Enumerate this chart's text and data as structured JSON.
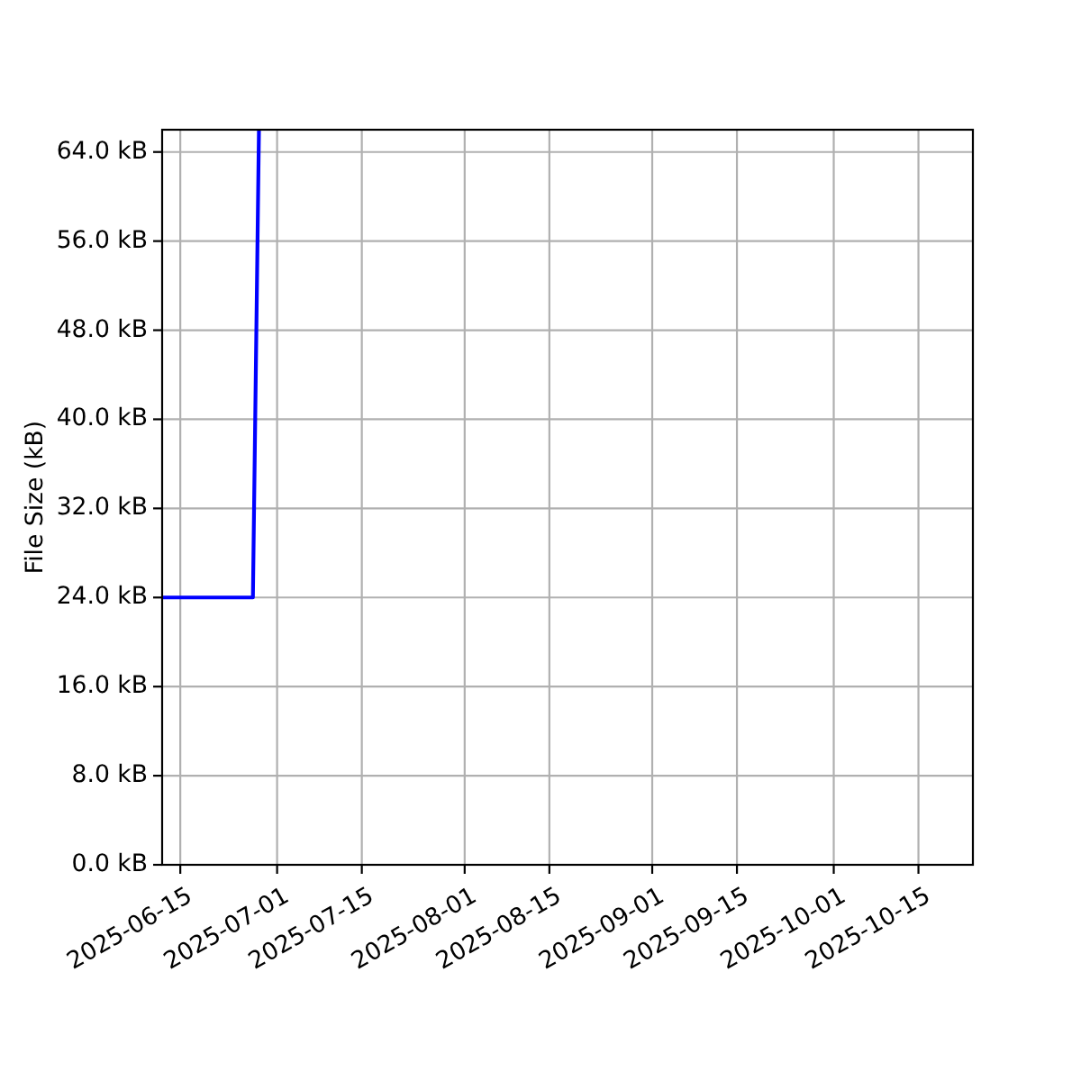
{
  "chart_data": {
    "type": "line",
    "ylabel": "File Size (kB)",
    "x": [
      "2025-06-12",
      "2025-06-27",
      "2025-06-28"
    ],
    "values": [
      24,
      24,
      66
    ],
    "color": "#0000ff",
    "xlim": [
      "2025-06-12",
      "2025-10-24"
    ],
    "xticks": [
      "2025-06-15",
      "2025-07-01",
      "2025-07-15",
      "2025-08-01",
      "2025-08-15",
      "2025-09-01",
      "2025-09-15",
      "2025-10-01",
      "2025-10-15"
    ],
    "ylim": [
      0,
      66
    ],
    "yticks": [
      {
        "value": 0,
        "label": "0.0 kB"
      },
      {
        "value": 8,
        "label": "8.0 kB"
      },
      {
        "value": 16,
        "label": "16.0 kB"
      },
      {
        "value": 24,
        "label": "24.0 kB"
      },
      {
        "value": 32,
        "label": "32.0 kB"
      },
      {
        "value": 40,
        "label": "40.0 kB"
      },
      {
        "value": 48,
        "label": "48.0 kB"
      },
      {
        "value": 56,
        "label": "56.0 kB"
      },
      {
        "value": 64,
        "label": "64.0 kB"
      }
    ],
    "grid": true
  }
}
